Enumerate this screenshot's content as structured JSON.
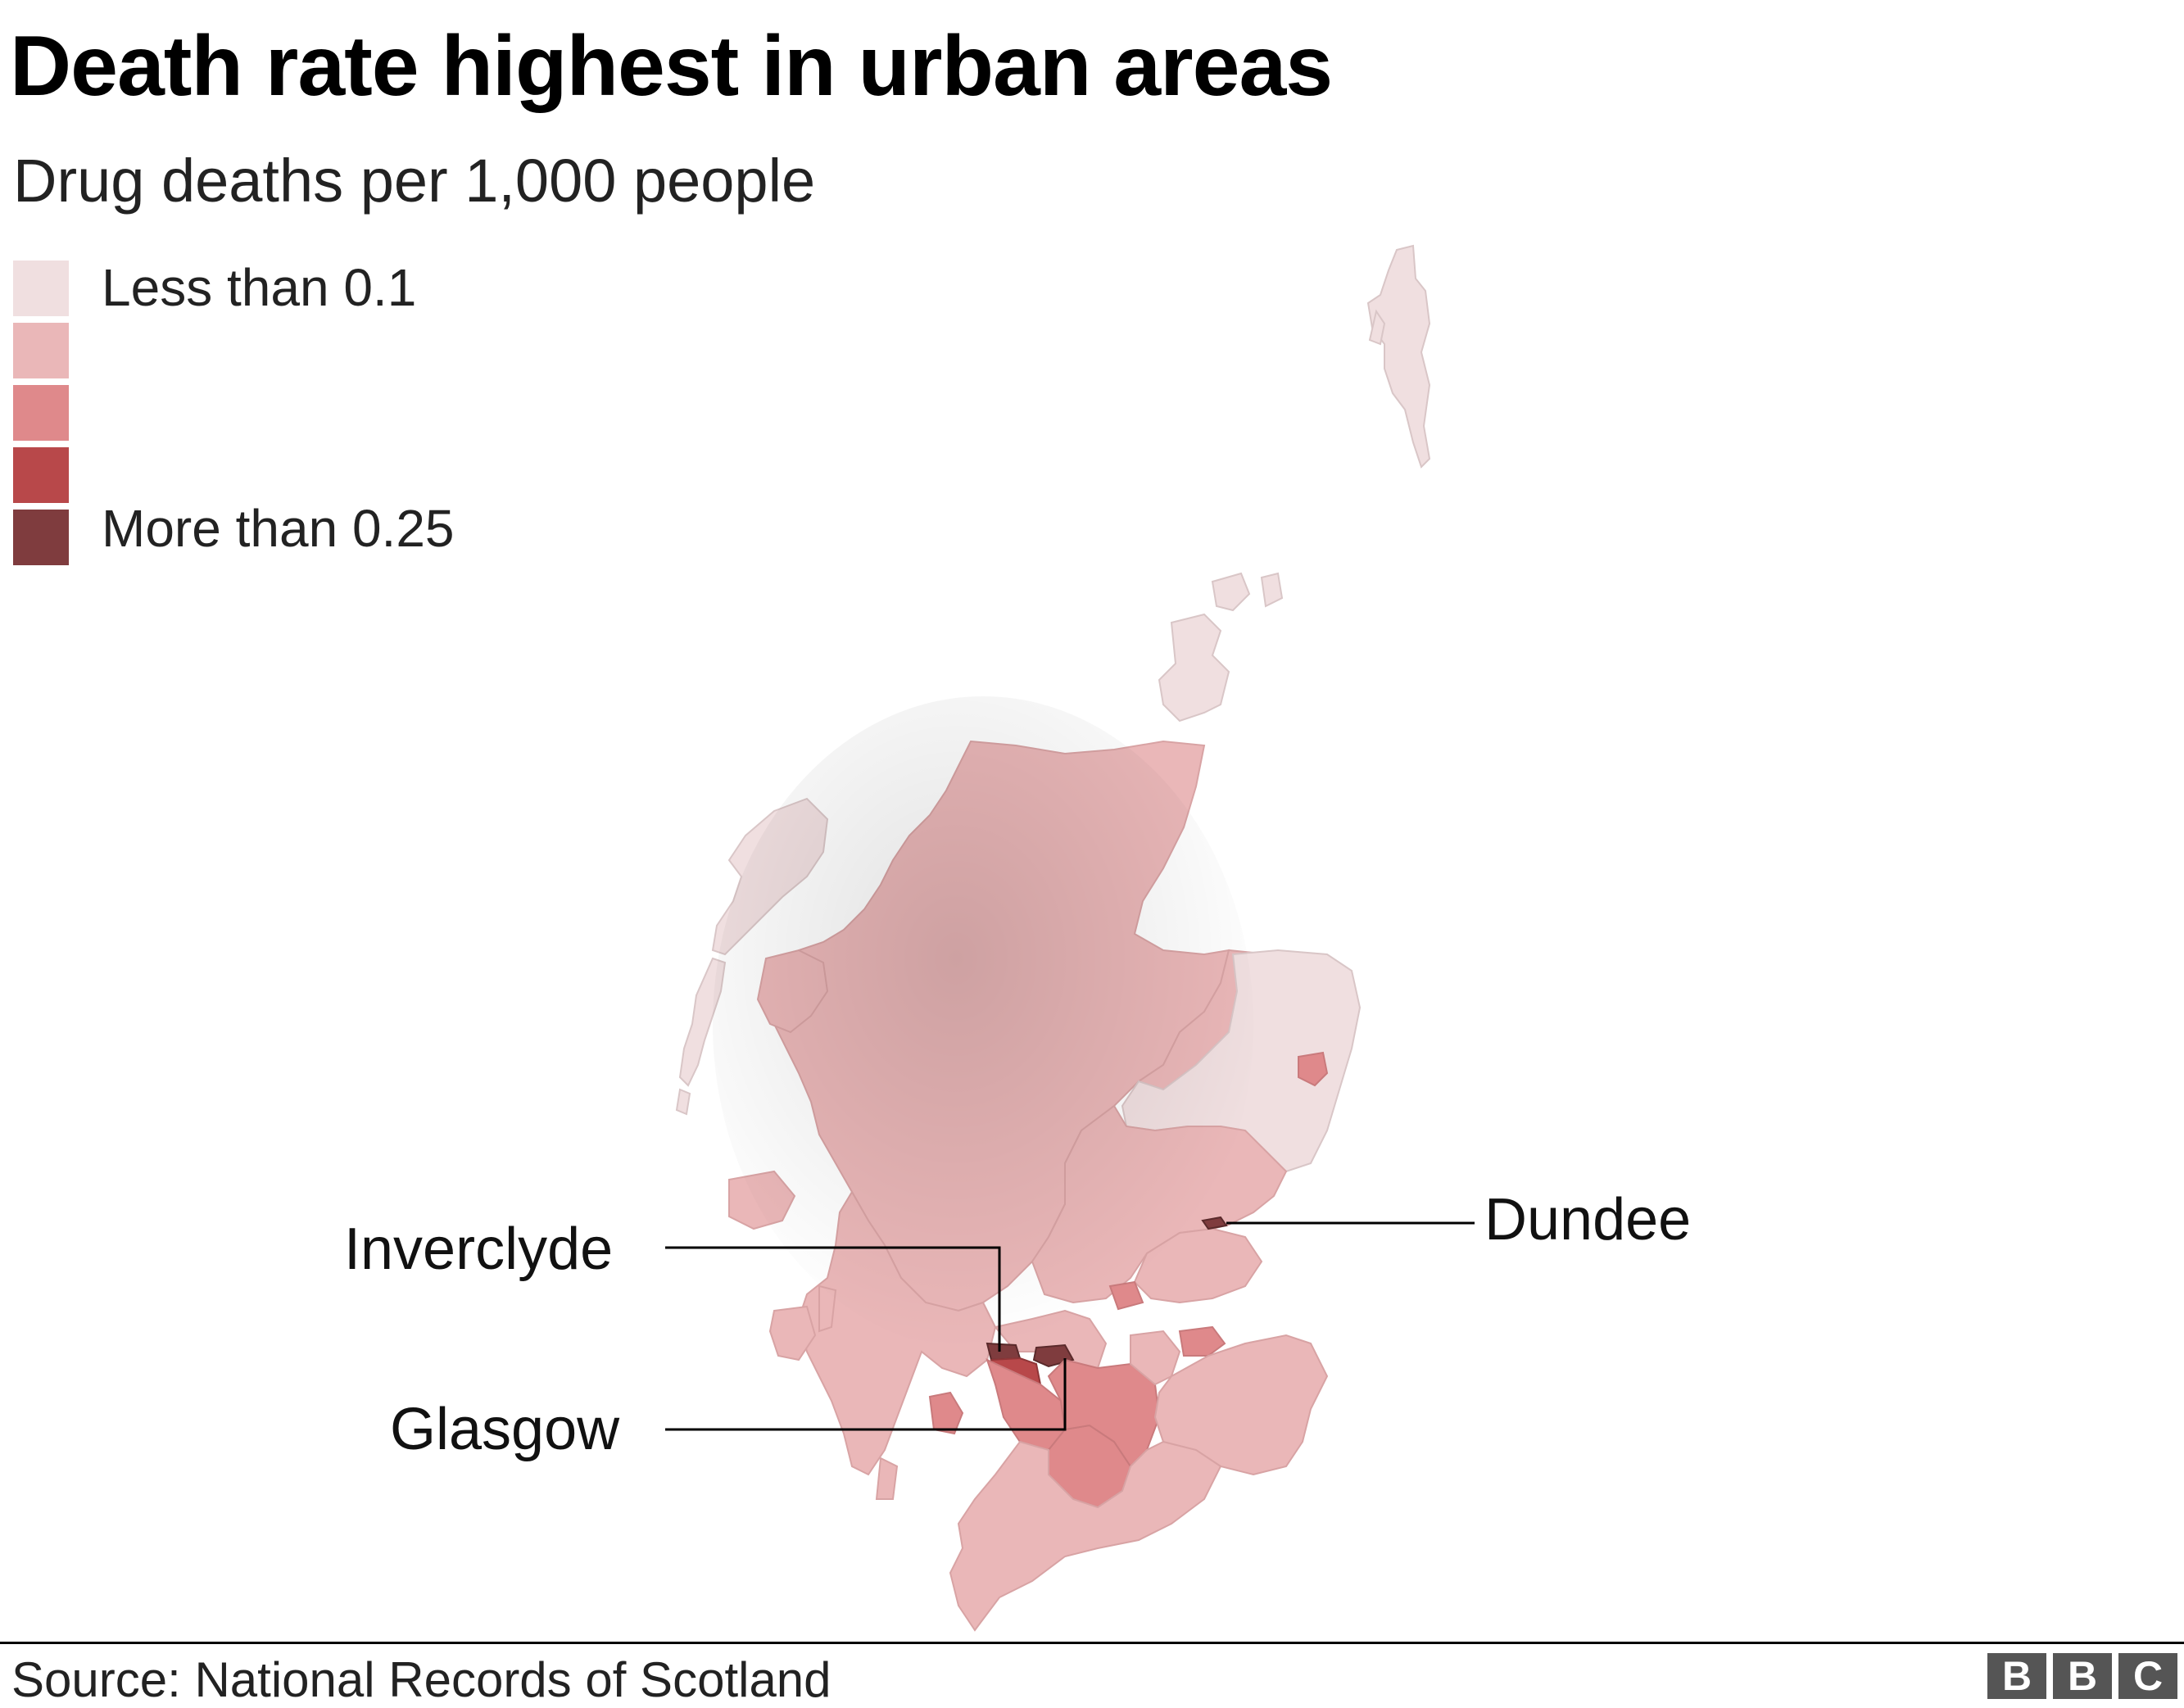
{
  "title": "Death rate highest in urban areas",
  "subtitle": "Drug deaths per 1,000 people",
  "legend": {
    "items": [
      {
        "label": "Less than 0.1",
        "color": "#f0dfe0"
      },
      {
        "label": "",
        "color": "#eab7b8"
      },
      {
        "label": "",
        "color": "#df898b"
      },
      {
        "label": "",
        "color": "#b8484a"
      },
      {
        "label": "More than 0.25",
        "color": "#7f3c3e"
      }
    ]
  },
  "labels": {
    "dundee": "Dundee",
    "inverclyde": "Inverclyde",
    "glasgow": "Glasgow"
  },
  "colors": {
    "lowest": "#f0dfe0",
    "low": "#eab7b8",
    "mid": "#df898b",
    "high": "#b8484a",
    "highest": "#7f3c3e",
    "leader": "#000000"
  },
  "footer": {
    "source": "Source: National Records of Scotland",
    "logo": [
      "B",
      "B",
      "C"
    ]
  }
}
